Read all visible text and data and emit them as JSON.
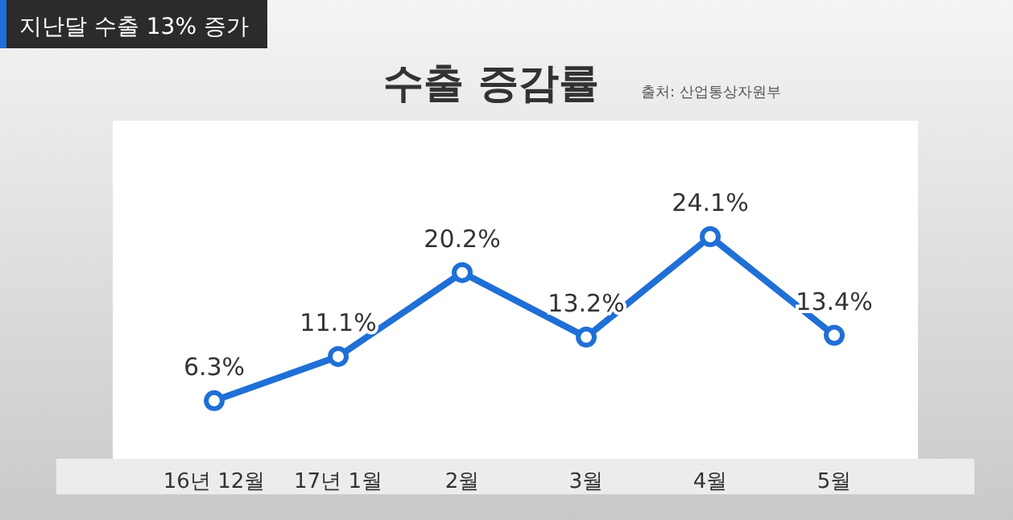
{
  "chart_data": {
    "type": "line",
    "title": "수출 증감률",
    "categories": [
      "16년 12월",
      "17년 1월",
      "2월",
      "3월",
      "4월",
      "5월"
    ],
    "values": [
      6.3,
      11.1,
      20.2,
      13.2,
      24.1,
      13.4
    ],
    "value_labels": [
      "6.3%",
      "11.1%",
      "20.2%",
      "13.2%",
      "24.1%",
      "13.4%"
    ],
    "color": "#1f6fd6",
    "marker": "circle",
    "line_style": "solid",
    "annotations": [
      "지난달 수출 13% 증가",
      "출처: 산업통상자원부"
    ]
  }
}
